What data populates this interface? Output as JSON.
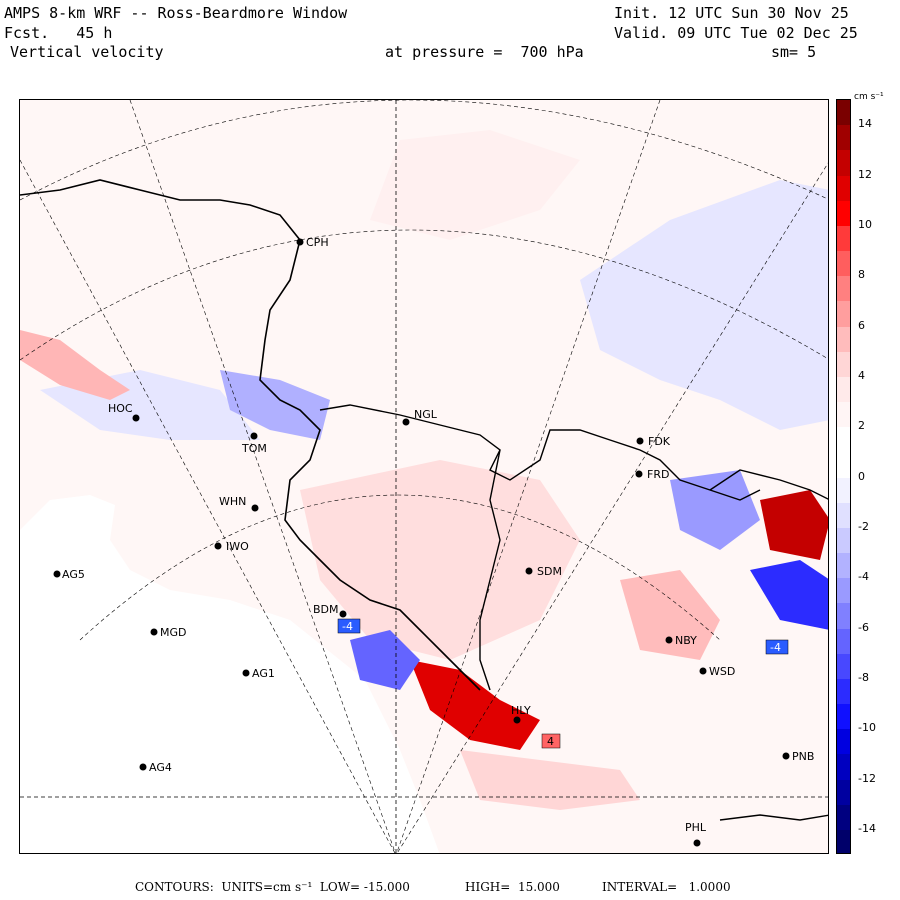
{
  "header": {
    "title": "AMPS 8-km WRF -- Ross-Beardmore Window",
    "init": "Init. 12 UTC Sun 30 Nov 25",
    "forecast": "Fcst.   45 h",
    "valid": "Valid. 09 UTC Tue 02 Dec 25",
    "field": "Vertical velocity",
    "pressure": "at pressure =  700 hPa",
    "smoothing": "sm= 5"
  },
  "colorbar": {
    "units": "cm s⁻¹",
    "ticks": [
      "14",
      "12",
      "10",
      "8",
      "6",
      "4",
      "2",
      "0",
      "-2",
      "-4",
      "-6",
      "-8",
      "-10",
      "-12",
      "-14"
    ],
    "colors_top_to_bottom": [
      "#7a0000",
      "#a00000",
      "#c40000",
      "#e00000",
      "#ff0000",
      "#ff3a3a",
      "#ff5e5e",
      "#ff8080",
      "#ff9e9e",
      "#ffbcbc",
      "#ffd6d6",
      "#ffeaea",
      "#fff5f5",
      "#ffffff",
      "#ffffff",
      "#f2f2ff",
      "#e0e0ff",
      "#cacaff",
      "#b2b2ff",
      "#9a9aff",
      "#8080ff",
      "#6464ff",
      "#4848ff",
      "#2c2cff",
      "#1010ff",
      "#0000e0",
      "#0000c0",
      "#0000a0",
      "#000080",
      "#00006a"
    ]
  },
  "stations": [
    {
      "id": "CPH",
      "label": "CPH"
    },
    {
      "id": "HOC",
      "label": "HOC"
    },
    {
      "id": "TOM",
      "label": "TOM"
    },
    {
      "id": "NGL",
      "label": "NGL"
    },
    {
      "id": "FDK",
      "label": "FDK"
    },
    {
      "id": "FRD",
      "label": "FRD"
    },
    {
      "id": "WHN",
      "label": "WHN"
    },
    {
      "id": "IWO",
      "label": "IWO"
    },
    {
      "id": "AG5",
      "label": "AG5"
    },
    {
      "id": "SDM",
      "label": "SDM"
    },
    {
      "id": "BDM",
      "label": "BDM"
    },
    {
      "id": "MGD",
      "label": "MGD"
    },
    {
      "id": "AG1",
      "label": "AG1"
    },
    {
      "id": "NBY",
      "label": "NBY"
    },
    {
      "id": "WSD",
      "label": "WSD"
    },
    {
      "id": "HLY",
      "label": "HLY"
    },
    {
      "id": "PNB",
      "label": "PNB"
    },
    {
      "id": "AG4",
      "label": "AG4"
    },
    {
      "id": "PHL",
      "label": "PHL"
    }
  ],
  "markers": {
    "low": "-4",
    "high": "4",
    "east_low": "-4"
  },
  "footer": {
    "contours": "CONTOURS:  UNITS=cm s⁻¹  LOW= -15.000",
    "high": "HIGH=  15.000",
    "interval": "INTERVAL=   1.0000"
  }
}
